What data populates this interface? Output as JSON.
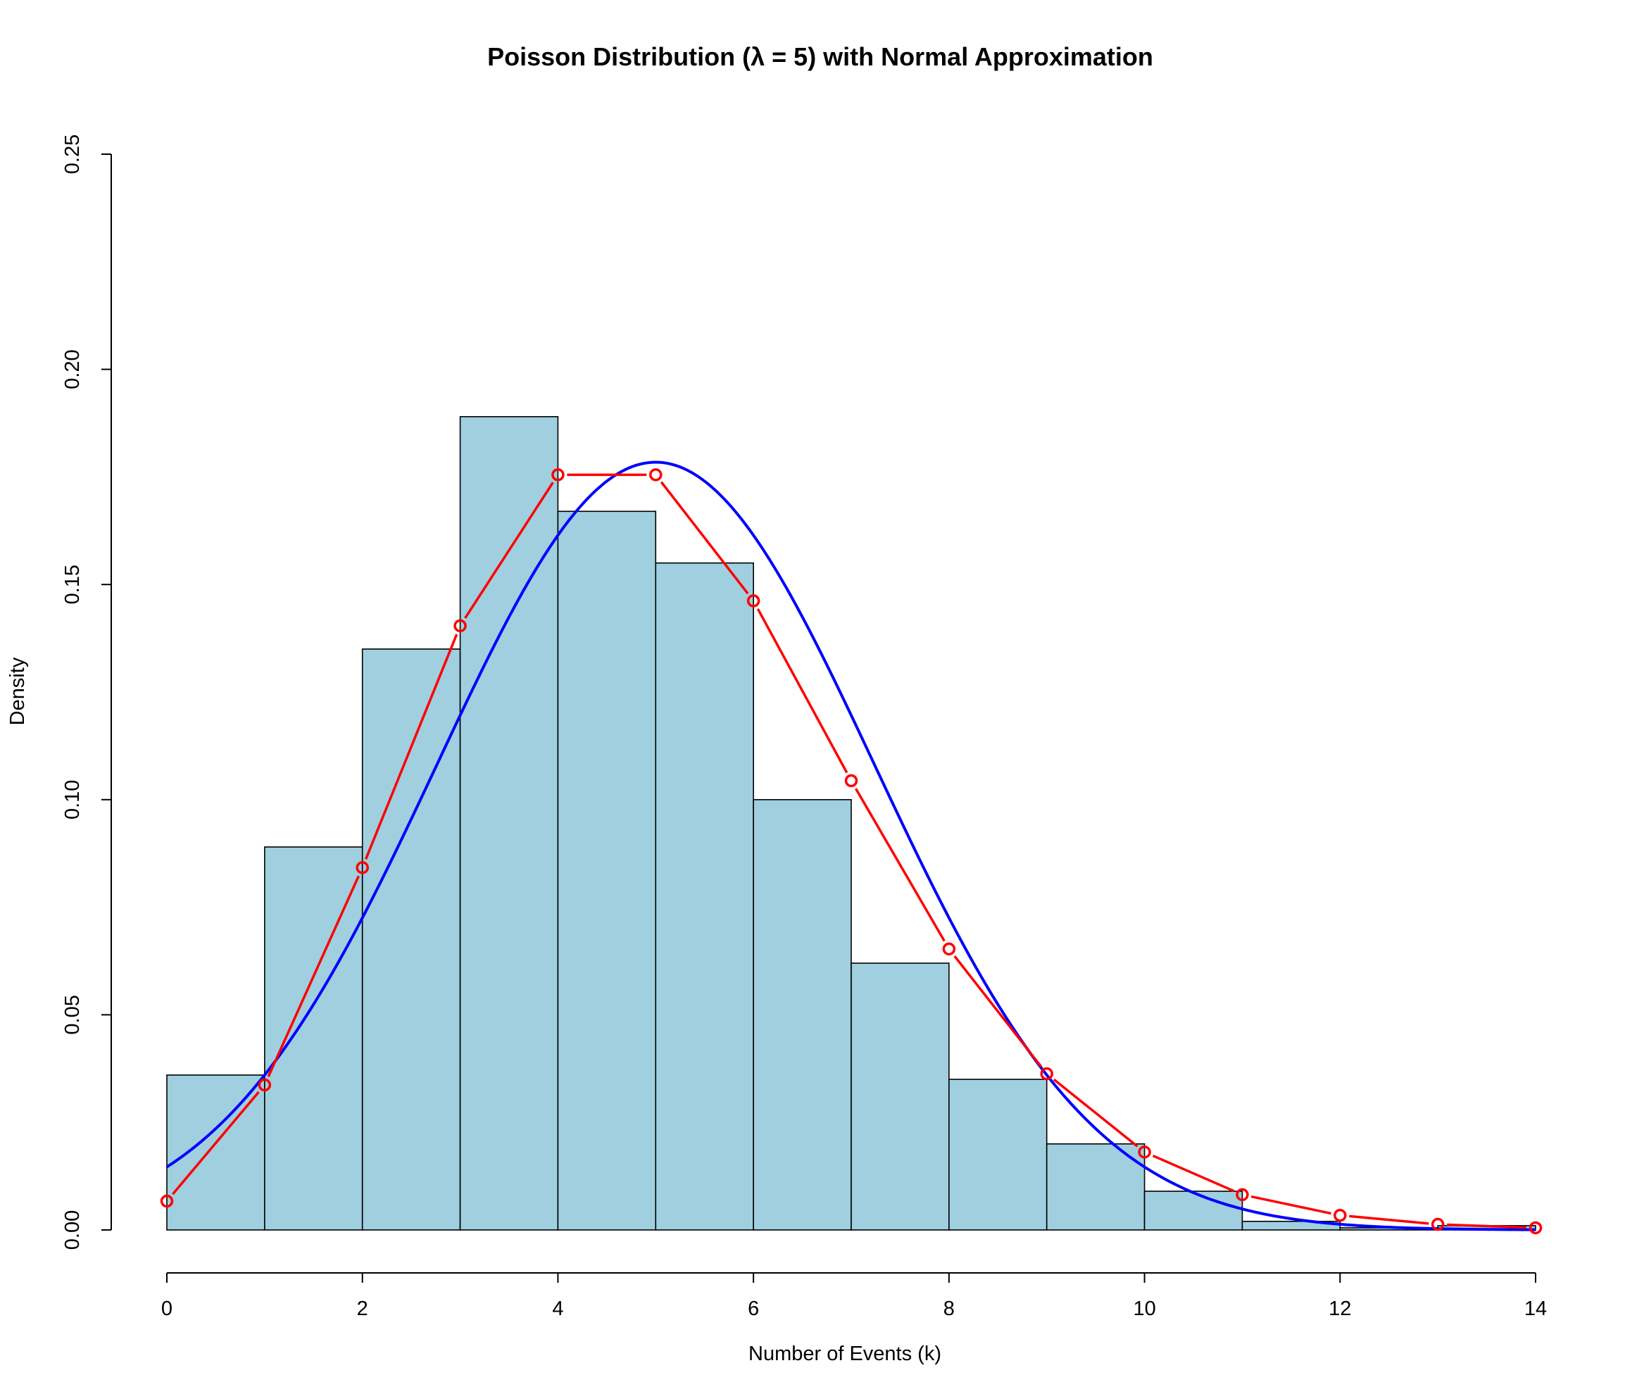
{
  "chart_data": {
    "type": "bar",
    "title": "Poisson Distribution (λ = 5) with Normal Approximation",
    "xlabel": "Number of Events (k)",
    "ylabel": "Density",
    "xlim": [
      0,
      14
    ],
    "ylim": [
      0,
      0.25
    ],
    "x_ticks": [
      "0",
      "2",
      "4",
      "6",
      "8",
      "10",
      "12",
      "14"
    ],
    "y_ticks": [
      "0.00",
      "0.05",
      "0.10",
      "0.15",
      "0.20",
      "0.25"
    ],
    "grid": false,
    "colors": {
      "bar_fill": "#a0cfe0",
      "bar_border": "#000000",
      "pmf_line": "#ff0000",
      "normal_curve": "#0000ff"
    },
    "histogram": {
      "bin_edges": [
        0,
        1,
        2,
        3,
        4,
        5,
        6,
        7,
        8,
        9,
        10,
        11,
        12,
        13,
        14
      ],
      "density": [
        0.036,
        0.089,
        0.135,
        0.189,
        0.167,
        0.155,
        0.1,
        0.062,
        0.035,
        0.02,
        0.009,
        0.002,
        0.0005,
        0.001
      ]
    },
    "series": [
      {
        "type": "line",
        "marker": "circle",
        "x": [
          0,
          1,
          2,
          3,
          4,
          5,
          6,
          7,
          8,
          9,
          10,
          11,
          12,
          13,
          14
        ],
        "values": [
          0.0067,
          0.0337,
          0.0842,
          0.1404,
          0.1755,
          0.1755,
          0.1462,
          0.1044,
          0.0653,
          0.0363,
          0.0181,
          0.0082,
          0.0034,
          0.0013,
          0.0005
        ]
      },
      {
        "type": "curve",
        "mean": 5,
        "sd": 2.236
      }
    ]
  }
}
